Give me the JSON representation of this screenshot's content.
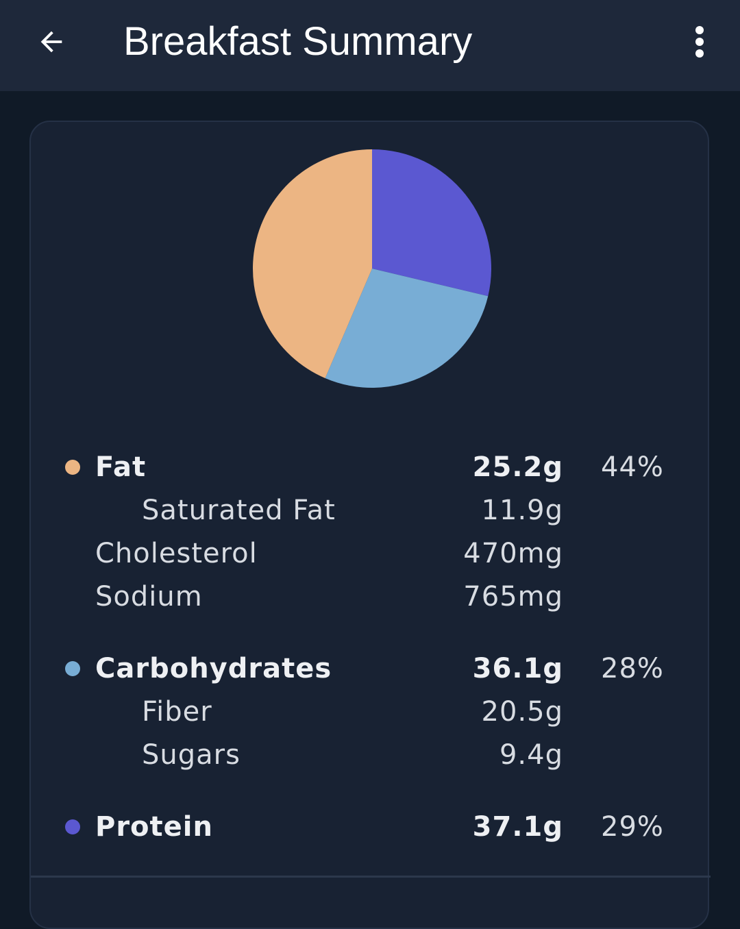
{
  "header": {
    "title": "Breakfast Summary",
    "back_icon": "arrow-back-icon",
    "menu_icon": "more-vert-icon"
  },
  "colors": {
    "fat": "#ecb583",
    "carbohydrates": "#78add5",
    "protein": "#5b58d1",
    "appbar": "#1e283a",
    "card": "#182233"
  },
  "chart_data": {
    "type": "pie",
    "slices": [
      {
        "name": "Protein",
        "value": 29,
        "color": "#5b58d1"
      },
      {
        "name": "Carbohydrates",
        "value": 28,
        "color": "#78add5"
      },
      {
        "name": "Fat",
        "value": 44,
        "color": "#ecb583"
      }
    ]
  },
  "nutrients": {
    "fat": {
      "label": "Fat",
      "amount": "25.2g",
      "percent": "44%"
    },
    "saturated_fat": {
      "label": "Saturated Fat",
      "amount": "11.9g"
    },
    "cholesterol": {
      "label": "Cholesterol",
      "amount": "470mg"
    },
    "sodium": {
      "label": "Sodium",
      "amount": "765mg"
    },
    "carbohydrates": {
      "label": "Carbohydrates",
      "amount": "36.1g",
      "percent": "28%"
    },
    "fiber": {
      "label": "Fiber",
      "amount": "20.5g"
    },
    "sugars": {
      "label": "Sugars",
      "amount": "9.4g"
    },
    "protein": {
      "label": "Protein",
      "amount": "37.1g",
      "percent": "29%"
    }
  }
}
